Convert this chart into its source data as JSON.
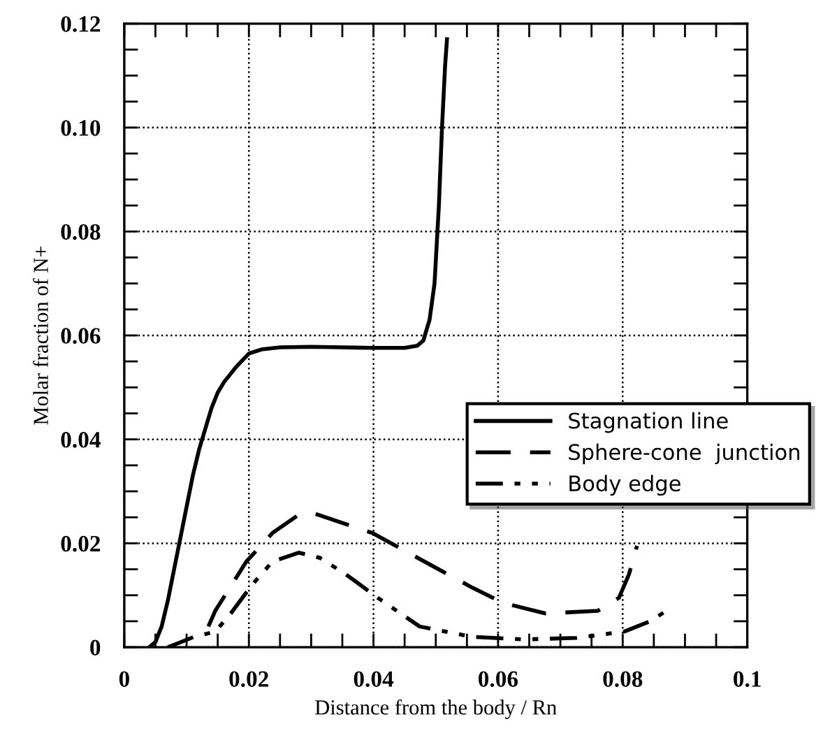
{
  "chart_data": {
    "type": "line",
    "xlabel": "Distance from the body / Rn",
    "ylabel": "Molar fraction of N+",
    "xlim": [
      0,
      0.1
    ],
    "ylim": [
      0,
      0.12
    ],
    "xticks": [
      0,
      0.02,
      0.04,
      0.06,
      0.08,
      {
        "value": 0.1,
        "label": "0.1"
      }
    ],
    "yticks": [
      0,
      0.02,
      0.04,
      0.06,
      0.08,
      {
        "value": 0.1,
        "label": "0.10"
      },
      0.12
    ],
    "grid": true,
    "legend": "right",
    "marker": "none",
    "series": [
      {
        "name": "Stagnation line",
        "color": "#000000",
        "line_style": "solid",
        "x": [
          0.004,
          0.005,
          0.006,
          0.007,
          0.008,
          0.009,
          0.01,
          0.011,
          0.012,
          0.013,
          0.014,
          0.015,
          0.016,
          0.018,
          0.02,
          0.022,
          0.025,
          0.03,
          0.035,
          0.04,
          0.045,
          0.047,
          0.048,
          0.049,
          0.0498,
          0.0505,
          0.051,
          0.0515,
          0.0518
        ],
        "values": [
          0,
          0.001,
          0.004,
          0.009,
          0.015,
          0.021,
          0.027,
          0.033,
          0.038,
          0.042,
          0.046,
          0.049,
          0.051,
          0.054,
          0.0565,
          0.0573,
          0.0577,
          0.0578,
          0.0577,
          0.0576,
          0.0576,
          0.058,
          0.059,
          0.063,
          0.07,
          0.085,
          0.1,
          0.112,
          0.117
        ]
      },
      {
        "name": "Sphere-cone  junction",
        "color": "#000000",
        "line_style": "dashed",
        "x": [
          0.0135,
          0.0146,
          0.0196,
          0.0238,
          0.028,
          0.0306,
          0.0398,
          0.0474,
          0.0558,
          0.0609,
          0.0676,
          0.076,
          0.0794,
          0.081,
          0.0823
        ],
        "values": [
          0.004,
          0.007,
          0.0165,
          0.022,
          0.0255,
          0.0257,
          0.022,
          0.017,
          0.0115,
          0.0085,
          0.0065,
          0.007,
          0.0095,
          0.014,
          0.0195
        ]
      },
      {
        "name": "Body edge",
        "color": "#000000",
        "line_style": "dashdot",
        "x": [
          0.007,
          0.0112,
          0.0146,
          0.0171,
          0.0205,
          0.0238,
          0.028,
          0.0314,
          0.0356,
          0.0407,
          0.0474,
          0.0558,
          0.0642,
          0.0726,
          0.0802,
          0.0844,
          0.087
        ],
        "values": [
          0,
          0.002,
          0.003,
          0.0065,
          0.012,
          0.0165,
          0.0182,
          0.0172,
          0.014,
          0.0095,
          0.004,
          0.002,
          0.0015,
          0.0018,
          0.003,
          0.005,
          0.007
        ]
      }
    ]
  }
}
